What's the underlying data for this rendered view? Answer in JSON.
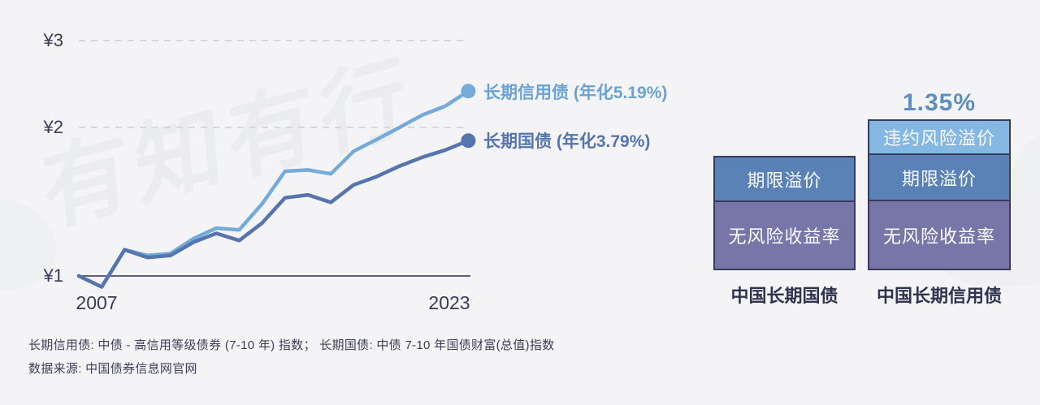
{
  "watermark": "有知有行",
  "line_chart": {
    "y_ticks": {
      "y3": "¥3",
      "y2": "¥2",
      "y1": "¥1"
    },
    "x_ticks": {
      "start": "2007",
      "end": "2023"
    },
    "legend": {
      "credit": "长期信用债 (年化5.19%)",
      "treasury": "长期国债 (年化3.79%)"
    }
  },
  "chart_data": {
    "type": "line",
    "y_scale": "log",
    "y_axis_ticks": [
      "¥1",
      "¥2",
      "¥3"
    ],
    "x_axis_ticks_shown": [
      "2007",
      "2023"
    ],
    "grid": "dashed horizontal at ¥2 and ¥3, solid baseline at ¥1",
    "legend_position": "right of line endpoints",
    "series": [
      {
        "name": "长期信用债",
        "legend": "长期信用债 (年化5.19%)",
        "annualized_return": "5.19%",
        "color": "#74abd9",
        "values": [
          1.0,
          0.95,
          1.13,
          1.1,
          1.11,
          1.19,
          1.25,
          1.24,
          1.4,
          1.63,
          1.64,
          1.61,
          1.79,
          1.89,
          2.0,
          2.12,
          2.21,
          2.37
        ]
      },
      {
        "name": "长期国债",
        "legend": "长期国债 (年化3.79%)",
        "annualized_return": "3.79%",
        "color": "#5674ae",
        "values": [
          1.0,
          0.95,
          1.13,
          1.09,
          1.1,
          1.17,
          1.22,
          1.18,
          1.28,
          1.44,
          1.46,
          1.41,
          1.53,
          1.59,
          1.67,
          1.74,
          1.8,
          1.88
        ]
      }
    ]
  },
  "decomposition": {
    "premium_label": "1.35%",
    "treasury_bar": {
      "caption": "中国长期国债",
      "segments": {
        "term": "期限溢价",
        "risk_free": "无风险收益率"
      }
    },
    "credit_bar": {
      "caption": "中国长期信用债",
      "segments": {
        "default": "违约风险溢价",
        "term": "期限溢价",
        "risk_free": "无风险收益率"
      }
    },
    "colors": {
      "default_premium": "#84b8e2",
      "term_premium": "#5b82b6",
      "risk_free": "#7876a9",
      "premium_text": "#5d8ec1"
    }
  },
  "footnotes": {
    "definitions": "长期信用债: 中债 - 高信用等级债券 (7-10 年) 指数； 长期国债: 中债 7-10 年国债财富(总值)指数",
    "source": "数据来源: 中国债券信息网官网"
  }
}
